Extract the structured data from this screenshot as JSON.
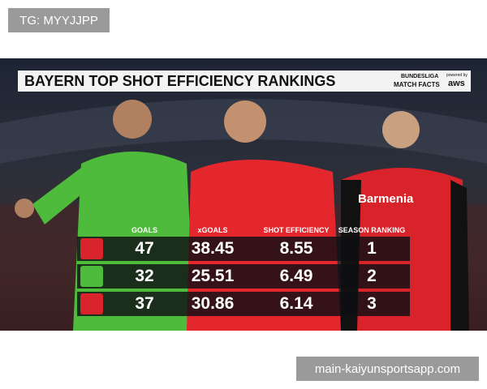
{
  "watermark": "TG: MYYJJPP",
  "title": "BAYERN TOP SHOT EFFICIENCY RANKINGS",
  "logo": {
    "brand": "BUNDESLIGA",
    "product": "MATCH FACTS",
    "powered": "powered by",
    "sponsor": "aws"
  },
  "jersey_sponsor": "Barmenia",
  "table": {
    "headers": [
      "GOALS",
      "xGOALS",
      "SHOT EFFICIENCY",
      "SEASON RANKING"
    ],
    "rows": [
      [
        47,
        38.45,
        8.55,
        1
      ],
      [
        32,
        25.51,
        6.49,
        2
      ],
      [
        37,
        30.86,
        6.14,
        3
      ]
    ]
  },
  "footer": "main-kaiyunsportsapp.com"
}
